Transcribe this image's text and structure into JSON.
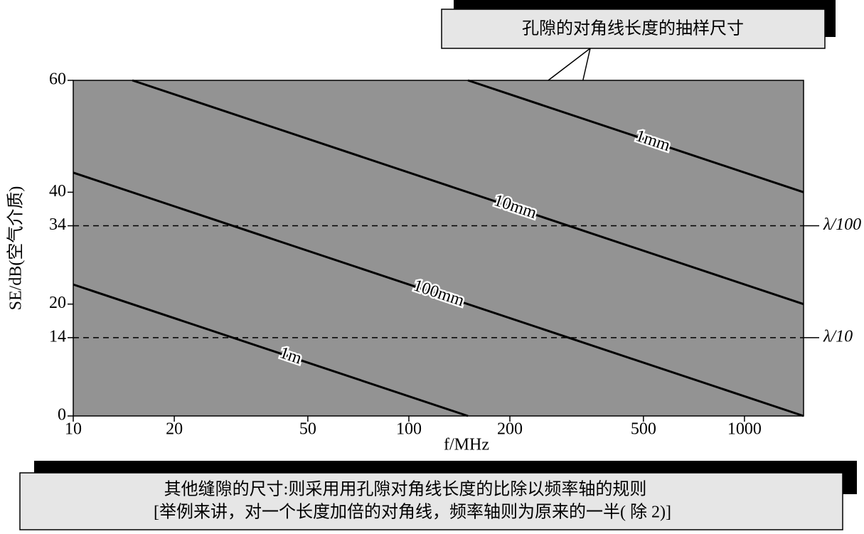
{
  "chart_data": {
    "type": "line",
    "callout": "孔隙的对角线长度的抽样尺寸",
    "footnote": [
      "其他缝隙的尺寸:则采用用孔隙对角线长度的比除以频率轴的规则",
      "[举例来讲，对一个长度加倍的对角线，频率轴则为原来的一半( 除 2)]"
    ],
    "xlabel": "f/MHz",
    "ylabel": "SE/dB(空气介质)",
    "log_x": true,
    "xlim": [
      10,
      1500
    ],
    "xticks": [
      10,
      20,
      50,
      100,
      200,
      500,
      1000
    ],
    "ylim": [
      0,
      60
    ],
    "yticks": [
      0,
      14,
      20,
      34,
      40,
      60
    ],
    "plot_color": "#939393",
    "series": [
      {
        "name": "1m",
        "color": "#000000",
        "x": [
          10,
          150
        ],
        "values": [
          23.5,
          0
        ]
      },
      {
        "name": "100mm",
        "color": "#000000",
        "x": [
          10,
          1500
        ],
        "values": [
          43.5,
          0
        ]
      },
      {
        "name": "10mm",
        "color": "#000000",
        "x": [
          15,
          1500
        ],
        "values": [
          60,
          20
        ]
      },
      {
        "name": "1mm",
        "color": "#000000",
        "x": [
          150,
          1500
        ],
        "values": [
          60,
          40
        ]
      }
    ],
    "hlines": [
      {
        "value": 34,
        "label": "λ/100"
      },
      {
        "value": 14,
        "label": "λ/10"
      }
    ]
  }
}
